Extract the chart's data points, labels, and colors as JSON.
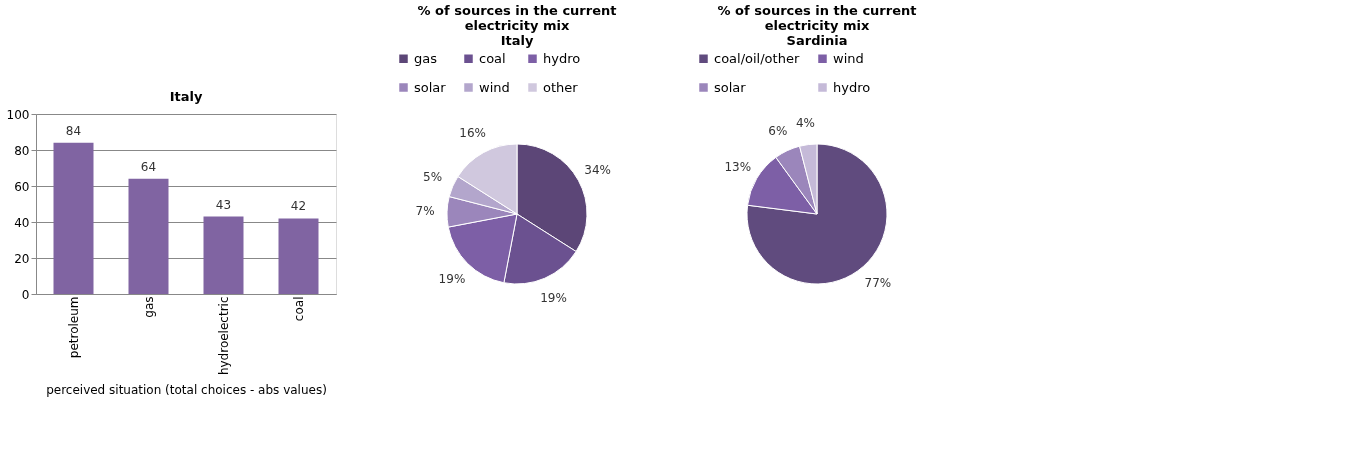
{
  "chart_data": [
    {
      "type": "bar",
      "title": "Italy",
      "xlabel": "perceived situation (total choices - abs values)",
      "categories": [
        "petroleum",
        "gas",
        "hydroelectric",
        "coal"
      ],
      "values": [
        84,
        64,
        43,
        42
      ],
      "color": "#8064a2",
      "ylim": [
        0,
        100
      ],
      "yticks": [
        0,
        20,
        40,
        60,
        80,
        100
      ],
      "grid": "y",
      "data_labels": true
    },
    {
      "type": "pie",
      "title": "% of sources  in the current electricity mix",
      "subtitle": "Italy",
      "categories": [
        "gas",
        "coal",
        "hydro",
        "solar",
        "wind",
        "other"
      ],
      "values": [
        34,
        19,
        19,
        7,
        5,
        16
      ],
      "colors": [
        "#5c4677",
        "#6b5190",
        "#7d5fa6",
        "#9b86bb",
        "#b3a6cc",
        "#d0c8de"
      ],
      "value_labels": [
        "34%",
        "19%",
        "19%",
        "7%",
        "5%",
        "16%"
      ],
      "legend": "top"
    },
    {
      "type": "pie",
      "title": "% of sources  in the current electricity mix",
      "subtitle": "Sardinia",
      "categories": [
        "coal/oil/other",
        "wind",
        "solar",
        "hydro"
      ],
      "values": [
        77,
        13,
        6,
        4
      ],
      "colors": [
        "#604b7e",
        "#7d5fa6",
        "#9b86bb",
        "#c5bad8"
      ],
      "value_labels": [
        "77%",
        "13%",
        "6%",
        "4%"
      ],
      "legend": "top"
    }
  ]
}
